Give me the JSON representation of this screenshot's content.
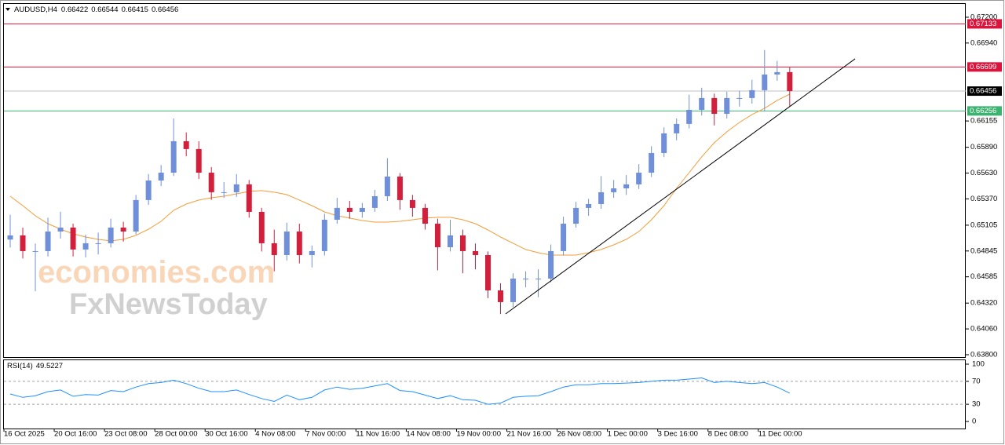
{
  "chart_data": {
    "type": "candlestick",
    "symbol": "AUDUSD,H4",
    "header_ohlc": [
      0.66422,
      0.66544,
      0.66415,
      0.66456
    ],
    "watermark": [
      "economies.com",
      "FxNewsToday"
    ],
    "ylim": [
      0.63776,
      0.67342
    ],
    "yticks": [
      {
        "value": 0.672,
        "label": "0.67200"
      },
      {
        "value": 0.6694,
        "label": "0.66940"
      },
      0.66155,
      {
        "value": 0.6589,
        "label": "0.65890"
      },
      {
        "value": 0.6563,
        "label": "0.65630"
      },
      {
        "value": 0.6537,
        "label": "0.65370"
      },
      0.65105,
      0.64845,
      0.64585,
      {
        "value": 0.6432,
        "label": "0.64320"
      },
      {
        "value": 0.6406,
        "label": "0.64060"
      },
      {
        "value": 0.638,
        "label": "0.63800"
      }
    ],
    "xlim": [
      0,
      76.5
    ],
    "xticks": [
      {
        "value": 0,
        "label": "16 Oct 2025"
      },
      {
        "value": 4,
        "label": "20 Oct 16:00"
      },
      {
        "value": 8,
        "label": "23 Oct 08:00"
      },
      {
        "value": 12,
        "label": "28 Oct 00:00"
      },
      {
        "value": 16,
        "label": "30 Oct 16:00"
      },
      {
        "value": 20,
        "label": "4 Nov 08:00"
      },
      {
        "value": 24,
        "label": "7 Nov 00:00"
      },
      {
        "value": 28,
        "label": "11 Nov 16:00"
      },
      {
        "value": 32,
        "label": "14 Nov 08:00"
      },
      {
        "value": 36,
        "label": "19 Nov 00:00"
      },
      {
        "value": 40,
        "label": "21 Nov 16:00"
      },
      {
        "value": 44,
        "label": "26 Nov 08:00"
      },
      {
        "value": 48,
        "label": "1 Dec 00:00"
      },
      {
        "value": 52,
        "label": "3 Dec 16:00"
      },
      {
        "value": 56,
        "label": "8 Dec 08:00"
      },
      {
        "value": 60,
        "label": "11 Dec 00:00"
      }
    ],
    "open": [
      0.6496,
      0.65002,
      0.64844,
      0.64844,
      0.65041,
      0.65081,
      0.6486,
      0.64923,
      0.64923,
      0.65081,
      0.65041,
      0.65358,
      0.65555,
      0.65634,
      0.65951,
      0.65872,
      0.65634,
      0.65437,
      0.65437,
      0.65516,
      0.65239,
      0.64923,
      0.64804,
      0.65041,
      0.64804,
      0.64844,
      0.6516,
      0.65279,
      0.65239,
      0.65279,
      0.65397,
      0.65595,
      0.65358,
      0.65279,
      0.6512,
      0.64883,
      0.65002,
      0.64844,
      0.64804,
      0.64448,
      0.6433,
      0.64567,
      0.64567,
      0.64567,
      0.64844,
      0.6512,
      0.65279,
      0.65318,
      0.65437,
      0.65476,
      0.65516,
      0.65634,
      0.65832,
      0.6603,
      0.66125,
      0.66267,
      0.66386,
      0.66227,
      0.66386,
      0.66386,
      0.66465,
      0.66623,
      0.66647
    ],
    "high": [
      0.6521,
      0.6508,
      0.6492,
      0.6518,
      0.6524,
      0.6512,
      0.6501,
      0.6503,
      0.6517,
      0.6514,
      0.6541,
      0.6562,
      0.6571,
      0.6618,
      0.6604,
      0.6595,
      0.6569,
      0.6554,
      0.6562,
      0.6556,
      0.6528,
      0.6506,
      0.6513,
      0.6512,
      0.649,
      0.6522,
      0.6538,
      0.6535,
      0.6533,
      0.6546,
      0.6578,
      0.6563,
      0.6541,
      0.6532,
      0.6517,
      0.6516,
      0.6506,
      0.6492,
      0.6484,
      0.6452,
      0.6462,
      0.6464,
      0.6466,
      0.6491,
      0.6519,
      0.6534,
      0.6537,
      0.656,
      0.6556,
      0.6561,
      0.6572,
      0.659,
      0.6609,
      0.6618,
      0.6642,
      0.6649,
      0.6643,
      0.6645,
      0.6646,
      0.6657,
      0.6687,
      0.6676,
      0.667
    ],
    "low": [
      0.6488,
      0.6477,
      0.6444,
      0.6479,
      0.6497,
      0.6479,
      0.6478,
      0.6481,
      0.6488,
      0.6494,
      0.6501,
      0.6531,
      0.655,
      0.656,
      0.658,
      0.6557,
      0.6536,
      0.6538,
      0.6539,
      0.6518,
      0.6484,
      0.6464,
      0.6475,
      0.6472,
      0.6468,
      0.648,
      0.6512,
      0.6517,
      0.6518,
      0.6524,
      0.6535,
      0.6526,
      0.6519,
      0.6506,
      0.6465,
      0.6484,
      0.6462,
      0.6466,
      0.6437,
      0.6421,
      0.6428,
      0.6448,
      0.6438,
      0.6453,
      0.648,
      0.6508,
      0.652,
      0.6527,
      0.6538,
      0.6541,
      0.6547,
      0.6559,
      0.6579,
      0.6596,
      0.6608,
      0.6621,
      0.6611,
      0.6618,
      0.663,
      0.6633,
      0.6625,
      0.6656,
      0.663
    ],
    "close": [
      0.65002,
      0.64844,
      0.64844,
      0.65041,
      0.65081,
      0.6486,
      0.64923,
      0.64923,
      0.65081,
      0.65041,
      0.65358,
      0.65555,
      0.65634,
      0.65951,
      0.65872,
      0.65634,
      0.65437,
      0.65437,
      0.65516,
      0.65239,
      0.64923,
      0.64804,
      0.65041,
      0.64804,
      0.64844,
      0.6516,
      0.65279,
      0.65239,
      0.65279,
      0.65397,
      0.65595,
      0.65358,
      0.65279,
      0.6512,
      0.64883,
      0.65002,
      0.64844,
      0.64804,
      0.64448,
      0.6433,
      0.64567,
      0.64567,
      0.64567,
      0.64844,
      0.6512,
      0.65279,
      0.65318,
      0.65437,
      0.65476,
      0.65516,
      0.65634,
      0.65832,
      0.6603,
      0.66125,
      0.66267,
      0.66386,
      0.66227,
      0.66386,
      0.66386,
      0.66465,
      0.66623,
      0.66647,
      0.66456
    ],
    "up_color": "#6f8fd8",
    "down_color": "#d21f3c",
    "ma": {
      "color": "#f29d38",
      "values": [
        0.65397,
        0.65302,
        0.652,
        0.6512,
        0.65065,
        0.65018,
        0.64986,
        0.64962,
        0.64947,
        0.64962,
        0.65002,
        0.65065,
        0.65144,
        0.65255,
        0.65318,
        0.65358,
        0.65381,
        0.65397,
        0.65421,
        0.65445,
        0.65453,
        0.65437,
        0.65413,
        0.65358,
        0.65302,
        0.65239,
        0.652,
        0.65176,
        0.65152,
        0.65136,
        0.65136,
        0.65144,
        0.6516,
        0.65176,
        0.65184,
        0.65184,
        0.6516,
        0.6512,
        0.65057,
        0.64986,
        0.64923,
        0.6486,
        0.64828,
        0.64804,
        0.64804,
        0.64804,
        0.64828,
        0.6486,
        0.64907,
        0.64962,
        0.65041,
        0.6516,
        0.65302,
        0.65476,
        0.65634,
        0.65793,
        0.65935,
        0.66046,
        0.6614,
        0.6622,
        0.66283,
        0.66362,
        0.66425
      ]
    },
    "levels": [
      {
        "value": 0.67133,
        "color": "#dc143c",
        "label_color": "#dc143c"
      },
      {
        "value": 0.66699,
        "color": "#dc143c",
        "label_color": "#dc143c"
      },
      {
        "value": 0.66456,
        "color": "#c0c0c0",
        "label_color": "#000000"
      },
      {
        "value": 0.66256,
        "color": "#3cb371",
        "label_color": "#3cb371"
      }
    ],
    "trendline": {
      "x": [
        39.9,
        67.7
      ],
      "y": [
        0.64211,
        0.66781
      ],
      "color": "#000000"
    },
    "rsi": {
      "name": "RSI(14)",
      "color": "#1e90ff",
      "ylim": [
        -12.3,
        108.2
      ],
      "yticks": [
        0,
        30,
        70,
        100
      ],
      "levels": [
        30,
        70
      ],
      "values": [
        48,
        42,
        45,
        52,
        55,
        44,
        47,
        46,
        54,
        52,
        60,
        66,
        68,
        72,
        66,
        58,
        52,
        52,
        55,
        47,
        40,
        35,
        46,
        38,
        42,
        55,
        60,
        56,
        58,
        62,
        66,
        54,
        52,
        46,
        40,
        45,
        38,
        37,
        30,
        32,
        42,
        44,
        45,
        52,
        60,
        64,
        64,
        66,
        66,
        67,
        68,
        70,
        72,
        72,
        74,
        76,
        68,
        70,
        68,
        66,
        68,
        60,
        49.5227
      ]
    }
  }
}
